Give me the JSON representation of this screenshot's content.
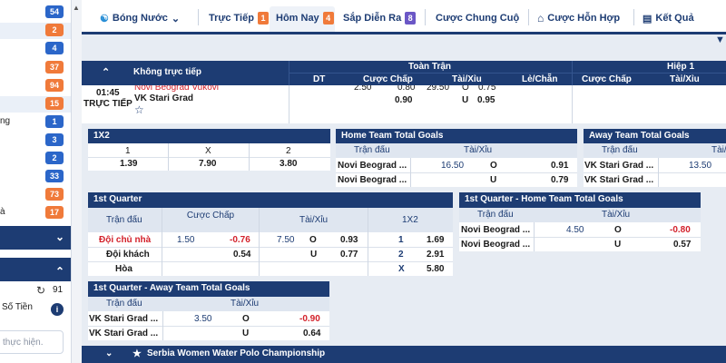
{
  "sidebar": {
    "counts": [
      {
        "value": "54",
        "color": "blue"
      },
      {
        "value": "2",
        "color": "orange"
      },
      {
        "value": "4",
        "color": "blue"
      },
      {
        "value": "37",
        "color": "orange"
      },
      {
        "value": "94",
        "color": "orange"
      },
      {
        "value": "15",
        "color": "orange"
      },
      {
        "value": "1",
        "color": "blue"
      },
      {
        "value": "3",
        "color": "blue"
      },
      {
        "value": "2",
        "color": "blue"
      },
      {
        "value": "33",
        "color": "blue"
      },
      {
        "value": "73",
        "color": "orange"
      },
      {
        "value": "17",
        "color": "orange"
      }
    ],
    "partial_labels": [
      "ng",
      "à"
    ],
    "balance_value": "91",
    "balance_label": "Số Tiền",
    "search_placeholder": "thực hiện."
  },
  "nav": {
    "sport": "Bóng Nước",
    "live_label": "Trực Tiếp",
    "live_count": "1",
    "today_label": "Hôm Nay",
    "today_count": "4",
    "upcoming_label": "Sắp Diễn Ra",
    "upcoming_count": "8",
    "final_label": "Cược Chung Cuộ",
    "parlay_label": "Cược Hỗn Hợp",
    "results_label": "Kết Quả"
  },
  "match_header": {
    "no_live": "Không trực tiếp",
    "full_time": "Toàn Trận",
    "first_half": "Hiệp 1",
    "cols_ft": [
      "DT",
      "Cược Chấp",
      "Tài/Xỉu",
      "Lẻ/Chẵn"
    ],
    "cols_h1": [
      "Cược Chấp",
      "Tài/Xỉu"
    ],
    "time": "01:45",
    "live_text": "TRỰC TIẾP",
    "home": "Novi Beograd Vukovi",
    "away": "VK Stari Grad",
    "partial_row": [
      "2.50",
      "0.80",
      "29.50",
      "O",
      "0.75"
    ],
    "away_row": [
      "0.90",
      "U",
      "0.95"
    ]
  },
  "one_x_two": {
    "title": "1X2",
    "labels": [
      "1",
      "X",
      "2"
    ],
    "odds": [
      "1.39",
      "7.90",
      "3.80"
    ]
  },
  "home_total": {
    "title": "Home Team Total Goals",
    "col_match": "Trận đấu",
    "col_ou": "Tài/Xỉu",
    "rows": [
      {
        "team": "Novi Beograd ...",
        "line": "16.50",
        "side": "O",
        "odd": "0.91"
      },
      {
        "team": "Novi Beograd ...",
        "line": "",
        "side": "U",
        "odd": "0.79"
      }
    ]
  },
  "away_total": {
    "title": "Away Team Total Goals",
    "col_match": "Trận đấu",
    "col_ou": "Tài/Xỉu",
    "rows": [
      {
        "team": "VK Stari Grad ...",
        "line": "13.50"
      },
      {
        "team": "VK Stari Grad ...",
        "line": ""
      }
    ]
  },
  "q1": {
    "title": "1st Quarter",
    "col_match": "Trận đấu",
    "col_hcap": "Cược Chấp",
    "col_ou": "Tài/Xỉu",
    "col_1x2": "1X2",
    "rows": [
      {
        "team": "Đội chủ nhà",
        "hline": "1.50",
        "hodd": "-0.76",
        "ouline": "7.50",
        "side": "O",
        "ouodd": "0.93",
        "r": "1",
        "rodd": "1.69"
      },
      {
        "team": "Đội khách",
        "hline": "",
        "hodd": "0.54",
        "ouline": "",
        "side": "U",
        "ouodd": "0.77",
        "r": "2",
        "rodd": "2.91"
      },
      {
        "team": "Hòa",
        "r": "X",
        "rodd": "5.80"
      }
    ]
  },
  "q1_home": {
    "title": "1st Quarter - Home Team Total Goals",
    "col_match": "Trận đấu",
    "col_ou": "Tài/Xỉu",
    "rows": [
      {
        "team": "Novi Beograd ...",
        "line": "4.50",
        "side": "O",
        "odd": "-0.80"
      },
      {
        "team": "Novi Beograd ...",
        "line": "",
        "side": "U",
        "odd": "0.57"
      }
    ]
  },
  "q1_away": {
    "title": "1st Quarter - Away Team Total Goals",
    "col_match": "Trận đấu",
    "col_ou": "Tài/Xỉu",
    "rows": [
      {
        "team": "VK Stari Grad ...",
        "line": "3.50",
        "side": "O",
        "odd": "-0.90"
      },
      {
        "team": "VK Stari Grad ...",
        "line": "",
        "side": "U",
        "odd": "0.64"
      }
    ]
  },
  "league_footer": "Serbia Women Water Polo Championship"
}
